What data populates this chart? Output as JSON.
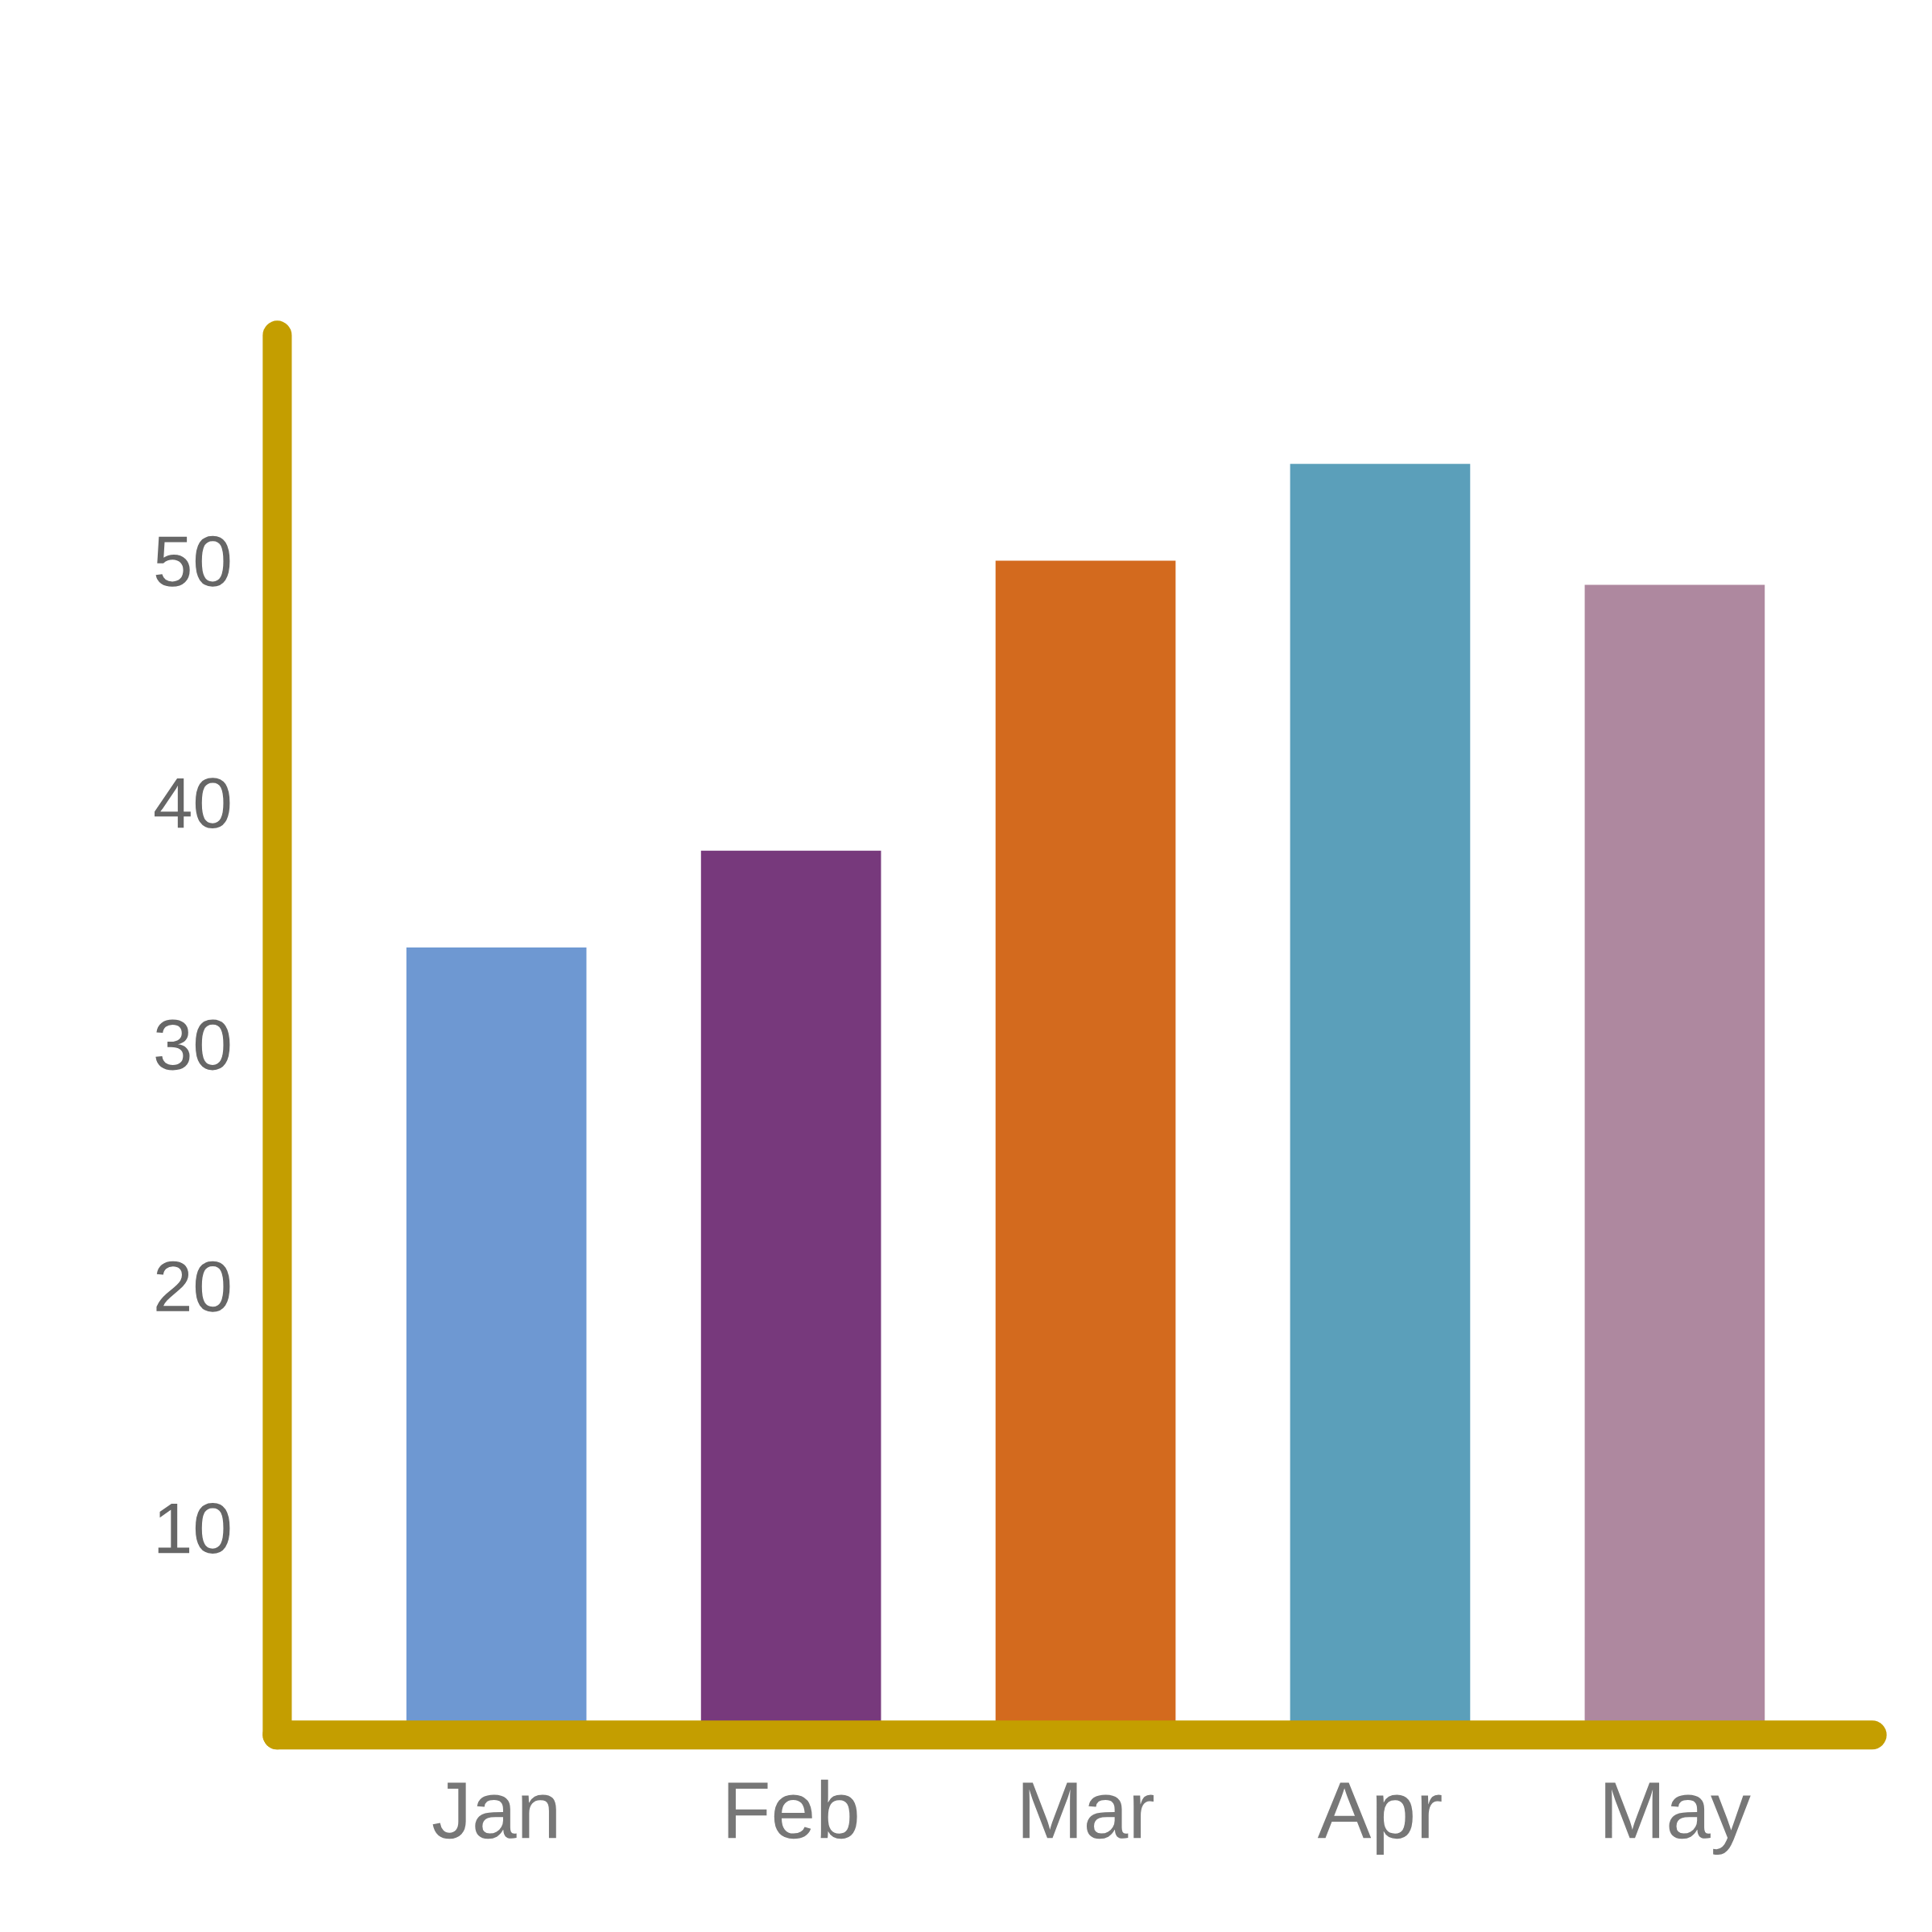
{
  "chart_data": {
    "type": "bar",
    "categories": [
      "Jan",
      "Feb",
      "Mar",
      "Apr",
      "May"
    ],
    "values": [
      34,
      38,
      50,
      54,
      49
    ],
    "colors": [
      "#6e98d2",
      "#77397c",
      "#d36a1e",
      "#5b9fba",
      "#ae889f"
    ],
    "ylim": [
      1.4,
      59.3
    ],
    "yticks": [
      10,
      20,
      30,
      40,
      50
    ],
    "grid": false
  }
}
